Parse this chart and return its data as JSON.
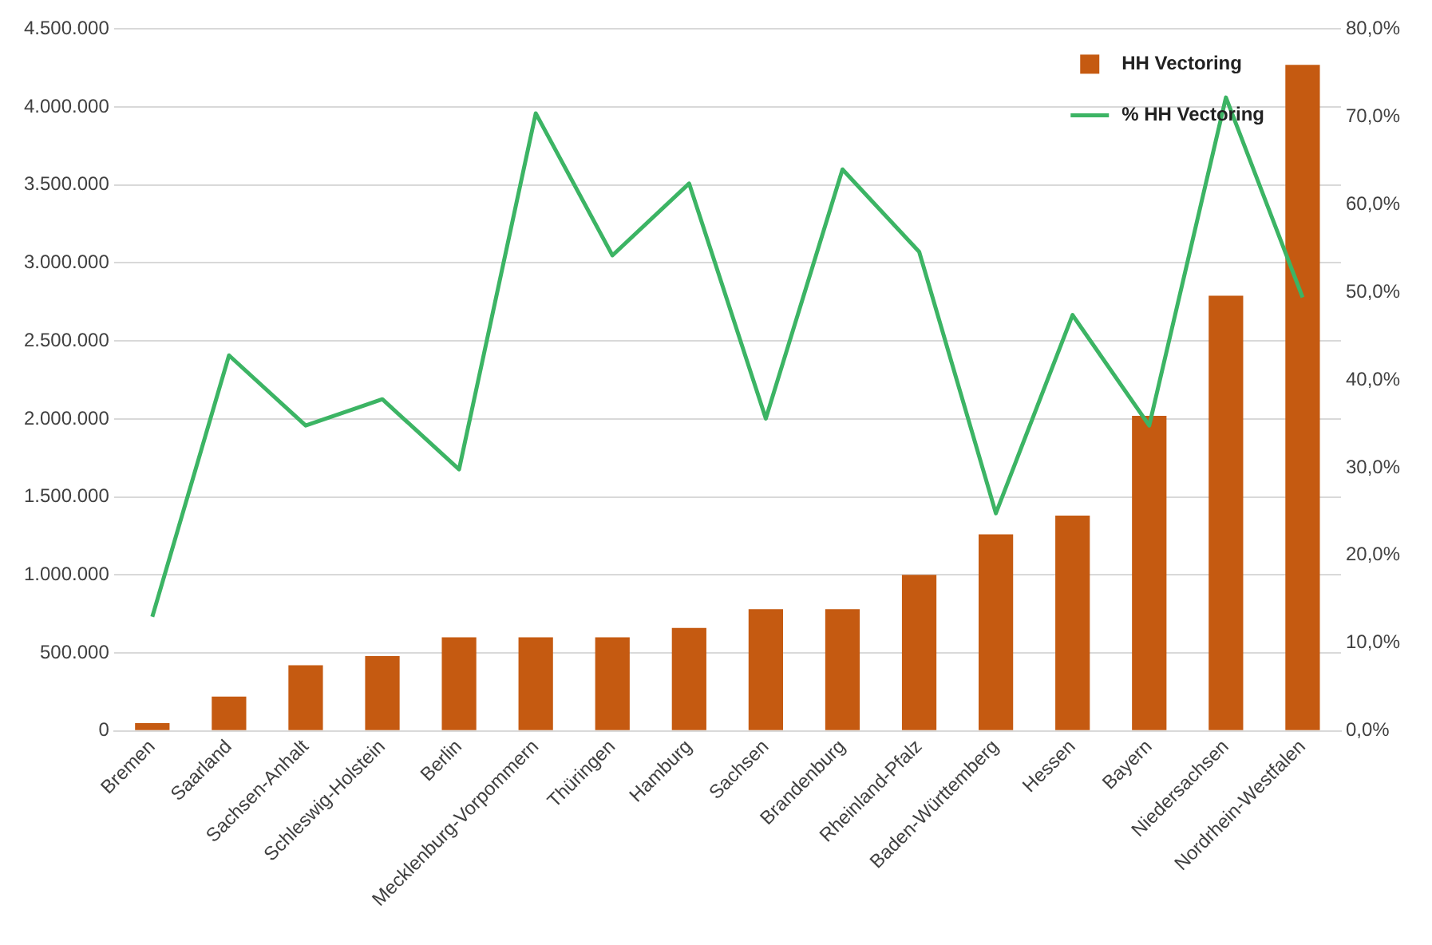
{
  "chart_data": {
    "type": "bar",
    "categories": [
      "Bremen",
      "Saarland",
      "Sachsen-Anhalt",
      "Schleswig-Holstein",
      "Berlin",
      "Mecklenburg-Vorpommern",
      "Thüringen",
      "Hamburg",
      "Sachsen",
      "Brandenburg",
      "Rheinland-Pfalz",
      "Baden-Württemberg",
      "Hessen",
      "Bayern",
      "Niedersachsen",
      "Nordrhein-Westfalen"
    ],
    "series": [
      {
        "name": "HH Vectoring",
        "color": "#c55a11",
        "values": [
          50000,
          220000,
          420000,
          480000,
          600000,
          600000,
          600000,
          660000,
          780000,
          780000,
          1000000,
          1260000,
          1380000,
          2020000,
          2790000,
          4270000
        ]
      },
      {
        "name": "% HH Vectoring",
        "type": "line",
        "axis": "y2",
        "color": "#3cb464",
        "values": [
          13.0,
          42.8,
          34.8,
          37.8,
          29.8,
          70.4,
          54.2,
          62.4,
          35.6,
          64.0,
          54.6,
          24.8,
          47.4,
          34.8,
          72.2,
          49.4
        ]
      }
    ],
    "ylim": [
      0,
      4500000
    ],
    "yticks": [
      {
        "value": 0,
        "label": "0"
      },
      {
        "value": 500000,
        "label": "500.000"
      },
      {
        "value": 1000000,
        "label": "1.000.000"
      },
      {
        "value": 1500000,
        "label": "1.500.000"
      },
      {
        "value": 2000000,
        "label": "2.000.000"
      },
      {
        "value": 2500000,
        "label": "2.500.000"
      },
      {
        "value": 3000000,
        "label": "3.000.000"
      },
      {
        "value": 3500000,
        "label": "3.500.000"
      },
      {
        "value": 4000000,
        "label": "4.000.000"
      },
      {
        "value": 4500000,
        "label": "4.500.000"
      }
    ],
    "y2lim": [
      0,
      80
    ],
    "y2ticks": [
      {
        "value": 0,
        "label": "0,0%"
      },
      {
        "value": 10,
        "label": "10,0%"
      },
      {
        "value": 20,
        "label": "20,0%"
      },
      {
        "value": 30,
        "label": "30,0%"
      },
      {
        "value": 40,
        "label": "40,0%"
      },
      {
        "value": 50,
        "label": "50,0%"
      },
      {
        "value": 60,
        "label": "60,0%"
      },
      {
        "value": 70,
        "label": "70,0%"
      },
      {
        "value": 80,
        "label": "80,0%"
      }
    ],
    "grid": "y",
    "legend": "top right",
    "marker": "none",
    "line_style": "solid"
  }
}
